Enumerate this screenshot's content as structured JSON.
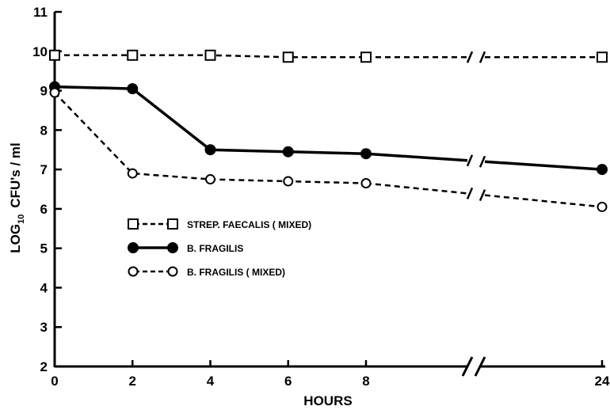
{
  "chart_data": {
    "type": "line",
    "title": "",
    "xlabel": "HOURS",
    "ylabel": {
      "base": "LOG",
      "sub": "10",
      "rest": "CFU's / ml"
    },
    "ylim": [
      2,
      11
    ],
    "y_ticks": [
      2,
      3,
      4,
      5,
      6,
      7,
      8,
      9,
      10,
      11
    ],
    "x_ticks": [
      0,
      2,
      4,
      6,
      8,
      24
    ],
    "x_break": "between 8 and 24",
    "grid": false,
    "legend_position": "left, middle",
    "series": [
      {
        "name": "STREP. FAECALIS ( MIXED)",
        "style": "dashed",
        "marker": "open-square",
        "x": [
          0,
          2,
          4,
          6,
          8,
          24
        ],
        "values": [
          9.9,
          9.9,
          9.9,
          9.85,
          9.85,
          9.85
        ]
      },
      {
        "name": "B. FRAGILIS",
        "style": "solid",
        "marker": "filled-circle",
        "x": [
          0,
          2,
          4,
          6,
          8,
          24
        ],
        "values": [
          9.1,
          9.05,
          7.5,
          7.45,
          7.4,
          7.0
        ]
      },
      {
        "name": "B. FRAGILIS ( MIXED)",
        "style": "dashed",
        "marker": "open-circle",
        "x": [
          0,
          2,
          4,
          6,
          8,
          24
        ],
        "values": [
          8.95,
          6.9,
          6.75,
          6.7,
          6.65,
          6.05
        ]
      }
    ]
  }
}
